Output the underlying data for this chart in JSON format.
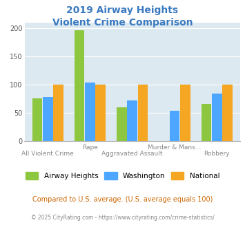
{
  "title_line1": "2019 Airway Heights",
  "title_line2": "Violent Crime Comparison",
  "title_color": "#3a7abf",
  "categories": [
    "All Violent Crime",
    "Rape",
    "Aggravated Assault",
    "Murder & Mans...",
    "Robbery"
  ],
  "airway_heights": [
    75,
    196,
    60,
    0,
    65
  ],
  "washington": [
    78,
    103,
    72,
    53,
    84
  ],
  "national": [
    100,
    100,
    100,
    100,
    100
  ],
  "colors": {
    "airway": "#8dc63f",
    "washington": "#4da6ff",
    "national": "#f5a623"
  },
  "ylim": [
    0,
    210
  ],
  "yticks": [
    0,
    50,
    100,
    150,
    200
  ],
  "bg_color": "#dce9f0",
  "legend_labels": [
    "Airway Heights",
    "Washington",
    "National"
  ],
  "footnote1": "Compared to U.S. average. (U.S. average equals 100)",
  "footnote2": "© 2025 CityRating.com - https://www.cityrating.com/crime-statistics/",
  "footnote1_color": "#cc6600",
  "footnote2_color": "#888888",
  "xlabels_top": [
    "",
    "Rape",
    "",
    "Murder & Mans...",
    ""
  ],
  "xlabels_bottom": [
    "All Violent Crime",
    "",
    "Aggravated Assault",
    "",
    "Robbery"
  ]
}
